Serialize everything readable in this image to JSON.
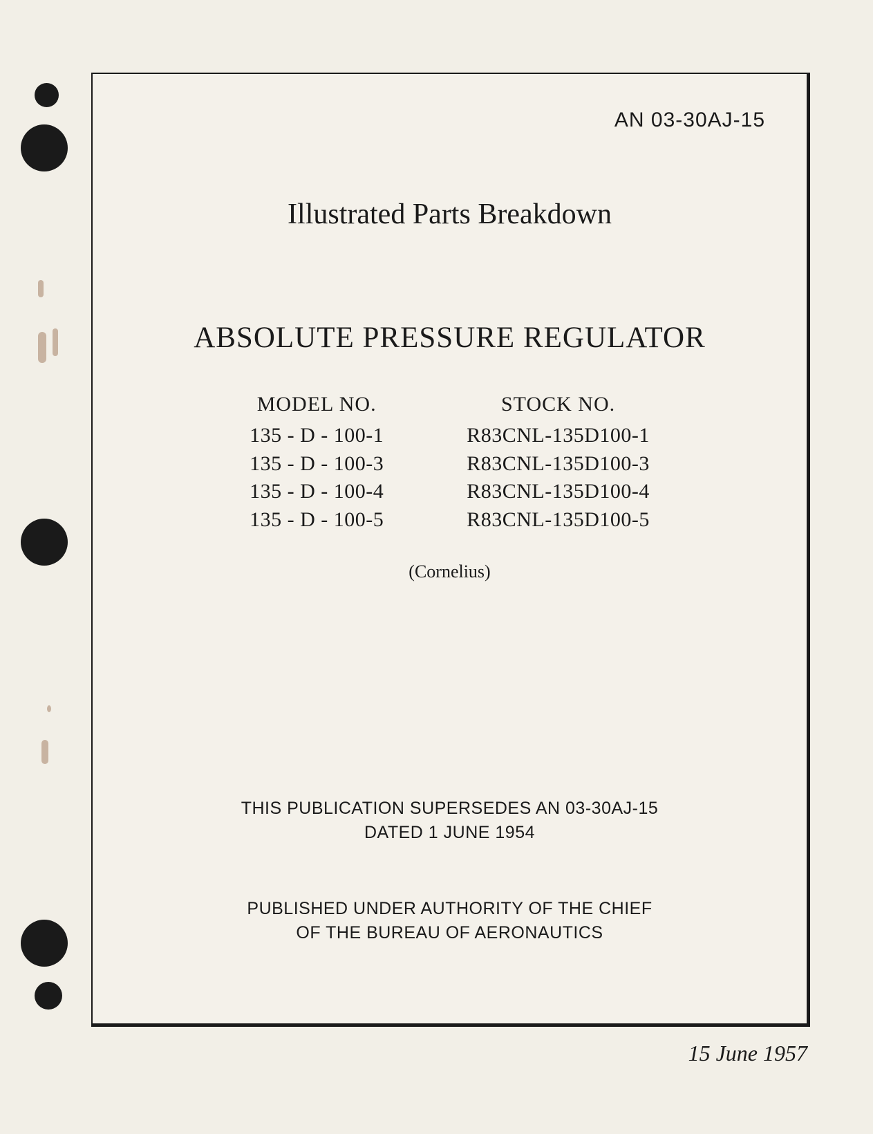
{
  "document": {
    "id": "AN 03-30AJ-15",
    "subtitle": "Illustrated Parts Breakdown",
    "title": "ABSOLUTE PRESSURE REGULATOR",
    "model_header": "MODEL NO.",
    "stock_header": "STOCK NO.",
    "models": [
      "135 - D - 100-1",
      "135 - D - 100-3",
      "135 - D - 100-4",
      "135 - D - 100-5"
    ],
    "stocks": [
      "R83CNL-135D100-1",
      "R83CNL-135D100-3",
      "R83CNL-135D100-4",
      "R83CNL-135D100-5"
    ],
    "manufacturer": "(Cornelius)",
    "supersedes_line1": "THIS PUBLICATION SUPERSEDES AN 03-30AJ-15",
    "supersedes_line2": "DATED 1 JUNE 1954",
    "authority_line1": "PUBLISHED UNDER AUTHORITY OF THE CHIEF",
    "authority_line2": "OF THE BUREAU OF AERONAUTICS",
    "date": "15 June 1957"
  },
  "styling": {
    "page_background": "#f2efe7",
    "text_color": "#1a1a1a",
    "border_color": "#1a1a1a",
    "hole_color": "#1a1a1a",
    "rust_color": "#8a5a3a",
    "title_fontsize": 43,
    "subtitle_fontsize": 42,
    "docid_fontsize": 30,
    "body_fontsize": 30,
    "footer_fontsize": 32,
    "notice_fontsize": 25
  }
}
